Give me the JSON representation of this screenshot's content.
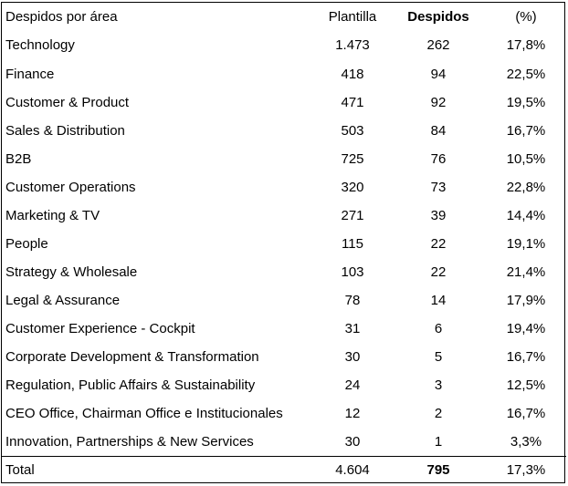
{
  "header": {
    "area": "Despidos por área",
    "plantilla": "Plantilla",
    "despidos": "Despidos",
    "pct": "(%)"
  },
  "rows": [
    {
      "area": "Technology",
      "plantilla": "1.473",
      "despidos": "262",
      "pct": "17,8%"
    },
    {
      "area": "Finance",
      "plantilla": "418",
      "despidos": "94",
      "pct": "22,5%"
    },
    {
      "area": "Customer & Product",
      "plantilla": "471",
      "despidos": "92",
      "pct": "19,5%"
    },
    {
      "area": "Sales & Distribution",
      "plantilla": "503",
      "despidos": "84",
      "pct": "16,7%"
    },
    {
      "area": "B2B",
      "plantilla": "725",
      "despidos": "76",
      "pct": "10,5%"
    },
    {
      "area": "Customer Operations",
      "plantilla": "320",
      "despidos": "73",
      "pct": "22,8%"
    },
    {
      "area": "Marketing & TV",
      "plantilla": "271",
      "despidos": "39",
      "pct": "14,4%"
    },
    {
      "area": "People",
      "plantilla": "115",
      "despidos": "22",
      "pct": "19,1%"
    },
    {
      "area": "Strategy & Wholesale",
      "plantilla": "103",
      "despidos": "22",
      "pct": "21,4%"
    },
    {
      "area": "Legal & Assurance",
      "plantilla": "78",
      "despidos": "14",
      "pct": "17,9%"
    },
    {
      "area": "Customer Experience - Cockpit",
      "plantilla": "31",
      "despidos": "6",
      "pct": "19,4%"
    },
    {
      "area": "Corporate Development & Transformation",
      "plantilla": "30",
      "despidos": "5",
      "pct": "16,7%"
    },
    {
      "area": "Regulation, Public Affairs & Sustainability",
      "plantilla": "24",
      "despidos": "3",
      "pct": "12,5%"
    },
    {
      "area": "CEO Office, Chairman Office e Institucionales",
      "plantilla": "12",
      "despidos": "2",
      "pct": "16,7%"
    },
    {
      "area": "Innovation, Partnerships & New Services",
      "plantilla": "30",
      "despidos": "1",
      "pct": "3,3%"
    }
  ],
  "total": {
    "area": "Total",
    "plantilla": "4.604",
    "despidos": "795",
    "pct": "17,3%"
  }
}
